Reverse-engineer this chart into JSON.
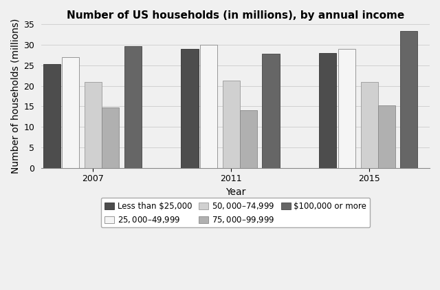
{
  "title": "Number of US households (in millions), by annual income",
  "xlabel": "Year",
  "ylabel": "Number of households (millions)",
  "years": [
    "2007",
    "2011",
    "2015"
  ],
  "categories": [
    "Less than $25,000",
    "$25,000–$49,999",
    "$50,000–$74,999",
    "$75,000–$99,999",
    "$100,000 or more"
  ],
  "values": {
    "Less than $25,000": [
      25.3,
      29.0,
      28.0
    ],
    "$25,000–$49,999": [
      27.0,
      30.0,
      29.0
    ],
    "$50,000–$74,999": [
      21.0,
      21.2,
      21.0
    ],
    "$75,000–$99,999": [
      14.7,
      14.0,
      15.3
    ],
    "$100,000 or more": [
      29.6,
      27.8,
      33.4
    ]
  },
  "colors": {
    "Less than $25,000": "#4d4d4d",
    "$25,000–$49,999": "#f5f5f5",
    "$50,000–$74,999": "#d0d0d0",
    "$75,000–$99,999": "#b0b0b0",
    "$100,000 or more": "#666666"
  },
  "edge_colors": {
    "Less than $25,000": "#333333",
    "$25,000–$49,999": "#888888",
    "$50,000–$74,999": "#999999",
    "$75,000–$99,999": "#888888",
    "$100,000 or more": "#444444"
  },
  "ylim": [
    0,
    35
  ],
  "yticks": [
    0,
    5,
    10,
    15,
    20,
    25,
    30,
    35
  ],
  "title_fontsize": 11,
  "axis_label_fontsize": 10,
  "tick_fontsize": 9,
  "legend_fontsize": 8.5,
  "background_color": "#f0f0f0"
}
